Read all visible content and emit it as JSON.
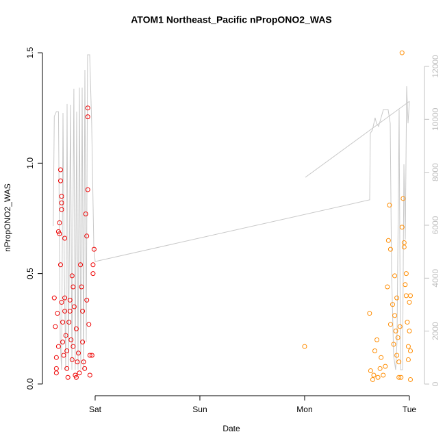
{
  "chart_data": {
    "type": "scatter",
    "title": "ATOM1 Northeast_Pacific nPropONO2_WAS",
    "x_label": "Date",
    "y_label": "nPropONO2_WAS",
    "xlim": [
      -0.503,
      3.144
    ],
    "xticks": [
      {
        "value": 0,
        "label": "Sat"
      },
      {
        "value": 1,
        "label": "Sun"
      },
      {
        "value": 2,
        "label": "Mon"
      },
      {
        "value": 3,
        "label": "Tue"
      }
    ],
    "ylim": [
      -0.053,
      1.556
    ],
    "yticks": [
      {
        "value": 0,
        "label": "0.0"
      },
      0.5,
      {
        "value": 1,
        "label": "1.0"
      },
      1.5
    ],
    "y2lim": [
      -440,
      12982
    ],
    "y2ticks": [
      0,
      2000,
      4000,
      6000,
      8000,
      10000,
      12000
    ],
    "y2_color": "#c0c0c0",
    "series": [
      {
        "type": "line",
        "axis": "y2",
        "color": "#c8c8c8",
        "x": [
          -0.4,
          -0.39,
          -0.37,
          -0.35,
          -0.333,
          -0.32,
          -0.307,
          -0.294,
          -0.281,
          -0.268,
          -0.255,
          -0.235,
          -0.222,
          -0.203,
          -0.19,
          -0.176,
          -0.163,
          -0.15,
          -0.137,
          -0.124,
          -0.111,
          -0.098,
          -0.085,
          -0.072,
          -0.052,
          -0.033,
          -0.013,
          0,
          2.621,
          2.627,
          2.647,
          2.673,
          2.686,
          2.706,
          2.752,
          2.797,
          2.817,
          2.83,
          2.85,
          2.869,
          2.882,
          2.902,
          2.915,
          2.935,
          2.948,
          2.961,
          2.974,
          2.987,
          3.0,
          null,
          2.007,
          3.0
        ],
        "values": [
          5970,
          10110,
          10290,
          10290,
          1580,
          540,
          10240,
          4160,
          540,
          10580,
          540,
          10550,
          540,
          11150,
          540,
          10290,
          540,
          11200,
          540,
          11200,
          540,
          11870,
          1580,
          12440,
          12440,
          9850,
          5200,
          4630,
          6960,
          9470,
          9600,
          10060,
          9850,
          9730,
          10370,
          10370,
          9850,
          4160,
          1060,
          540,
          1580,
          10370,
          540,
          540,
          8300,
          5460,
          11250,
          9850,
          10680,
          null,
          7810,
          10680
        ]
      },
      {
        "type": "scatter",
        "color": "#ee0000",
        "x": [
          -0.39,
          -0.38,
          -0.37,
          -0.37,
          -0.37,
          -0.36,
          -0.35,
          -0.35,
          -0.34,
          -0.34,
          -0.33,
          -0.33,
          -0.33,
          -0.32,
          -0.32,
          -0.32,
          -0.32,
          -0.31,
          -0.31,
          -0.3,
          -0.29,
          -0.29,
          -0.29,
          -0.28,
          -0.27,
          -0.27,
          -0.26,
          -0.25,
          -0.24,
          -0.24,
          -0.23,
          -0.22,
          -0.22,
          -0.21,
          -0.21,
          -0.2,
          -0.19,
          -0.18,
          -0.18,
          -0.17,
          -0.16,
          -0.15,
          -0.14,
          -0.13,
          -0.12,
          -0.12,
          -0.11,
          -0.1,
          -0.09,
          -0.08,
          -0.08,
          -0.07,
          -0.07,
          -0.07,
          -0.06,
          -0.05,
          -0.05,
          -0.03,
          -0.02,
          -0.01,
          -0.02
        ],
        "values": [
          0.39,
          0.26,
          0.12,
          0.07,
          0.05,
          0.32,
          0.17,
          0.69,
          0.68,
          0.73,
          0.54,
          0.92,
          0.97,
          0.85,
          0.82,
          0.79,
          0.37,
          0.28,
          0.19,
          0.13,
          0.66,
          0.39,
          0.33,
          0.22,
          0.15,
          0.07,
          0.03,
          0.28,
          0.38,
          0.33,
          0.2,
          0.11,
          0.49,
          0.44,
          0.17,
          0.35,
          0.04,
          0.03,
          0.25,
          0.1,
          0.14,
          0.05,
          0.54,
          0.44,
          0.33,
          0.19,
          0.1,
          0.07,
          0.77,
          0.67,
          0.38,
          1.25,
          1.21,
          0.88,
          0.27,
          0.13,
          0.04,
          0.13,
          0.54,
          0.61,
          0.5
        ]
      },
      {
        "type": "scatter",
        "color": "#ff8c00",
        "x": [
          2.0,
          2.62,
          2.63,
          2.65,
          2.66,
          2.67,
          2.69,
          2.7,
          2.72,
          2.73,
          2.75,
          2.77,
          2.79,
          2.8,
          2.81,
          2.82,
          2.82,
          2.84,
          2.85,
          2.86,
          2.86,
          2.87,
          2.88,
          2.88,
          2.89,
          2.9,
          2.9,
          2.91,
          2.92,
          2.93,
          2.93,
          2.94,
          2.95,
          2.95,
          2.96,
          2.97,
          2.97,
          2.98,
          2.99,
          2.99,
          3.0,
          3.01,
          3.01,
          3.0,
          3.01
        ],
        "values": [
          0.17,
          0.32,
          0.06,
          0.02,
          0.04,
          0.15,
          0.2,
          0.03,
          0.07,
          0.12,
          0.04,
          0.08,
          0.44,
          0.65,
          0.81,
          0.61,
          0.27,
          0.36,
          0.18,
          0.49,
          0.31,
          0.24,
          0.13,
          0.39,
          0.21,
          0.1,
          0.03,
          0.26,
          0.03,
          0.71,
          1.5,
          0.84,
          0.62,
          0.64,
          0.45,
          0.5,
          0.4,
          0.28,
          0.17,
          0.11,
          0.24,
          0.02,
          0.4,
          0.37,
          0.15
        ]
      }
    ]
  }
}
